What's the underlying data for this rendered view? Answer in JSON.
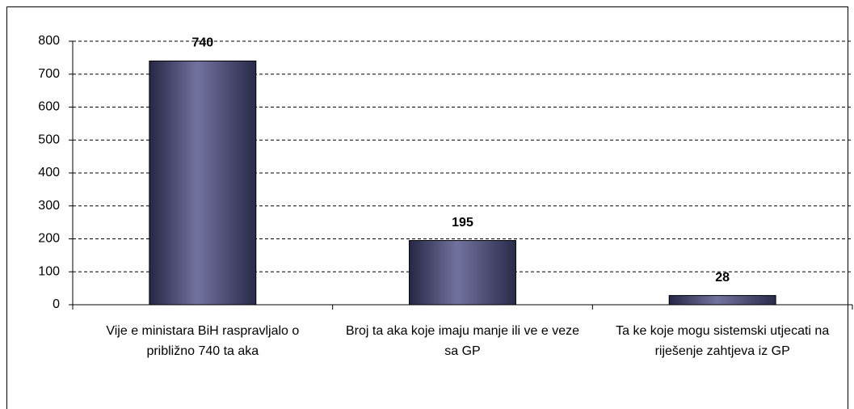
{
  "chart_data": {
    "type": "bar",
    "categories": [
      "Vije  e ministara BiH raspravljalo o približno 740 ta  aka",
      "Broj ta  aka koje imaju manje ili ve  e veze sa GP",
      "Ta  ke koje mogu sistemski utjecati na riješenje zahtjeva iz GP"
    ],
    "values": [
      740,
      195,
      28
    ],
    "color": "#4a4a7a",
    "ylim": [
      0,
      800
    ],
    "yticks": [
      0,
      100,
      200,
      300,
      400,
      500,
      600,
      700,
      800
    ],
    "grid": true
  }
}
